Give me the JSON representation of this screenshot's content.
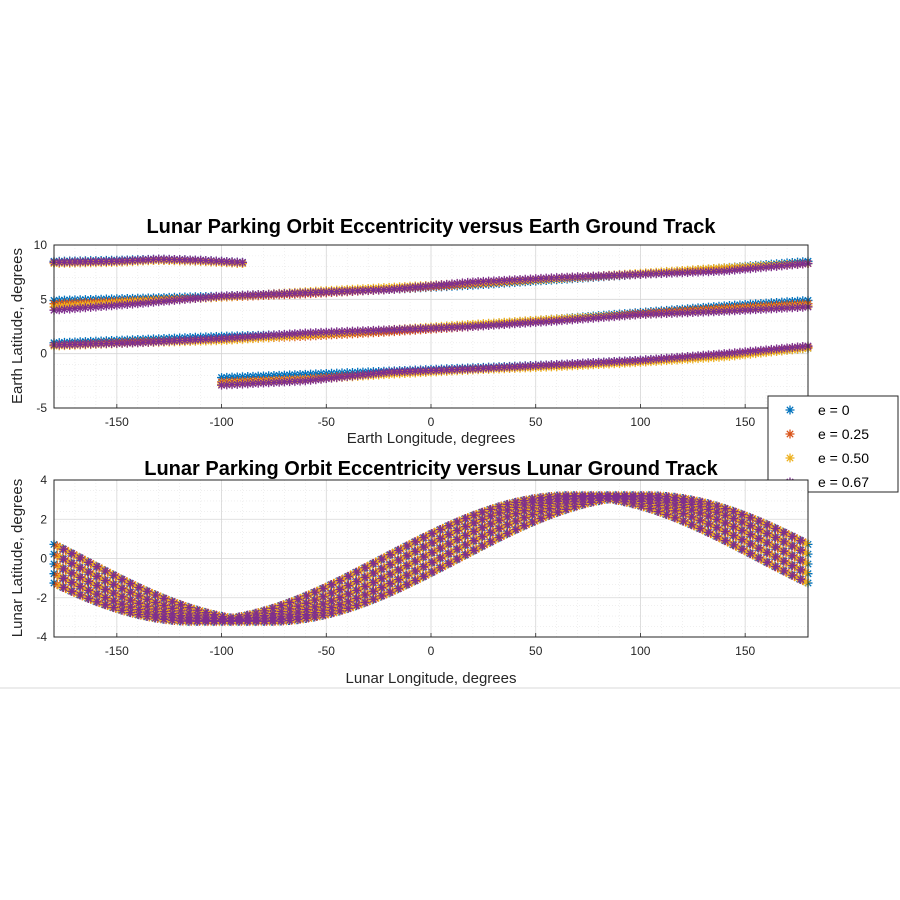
{
  "chart_data": [
    {
      "type": "scatter",
      "title": "Lunar Parking Orbit Eccentricity versus Earth Ground Track",
      "xlabel": "Earth Longitude, degrees",
      "ylabel": "Earth Latitude, degrees",
      "xlim": [
        -180,
        180
      ],
      "ylim": [
        -5,
        10
      ],
      "xticks": [
        -150,
        -100,
        -50,
        0,
        50,
        100,
        150
      ],
      "yticks": [
        -5,
        0,
        5,
        10
      ],
      "grid": true,
      "minor_grid": true,
      "marker": "*",
      "legend": {
        "placement": "outside-right",
        "entries": [
          "e = 0",
          "e = 0.25",
          "e = 0.50",
          "e = 0.67"
        ]
      },
      "series": [
        {
          "name": "e = 0",
          "color": "#0072BD",
          "segments": [
            {
              "x": [
                -180,
                -140,
                -100,
                -60,
                -20,
                20,
                60,
                100,
                140,
                180
              ],
              "y": [
                4.9,
                5.1,
                5.3,
                5.6,
                5.9,
                6.3,
                6.8,
                7.3,
                7.9,
                8.5
              ]
            },
            {
              "x": [
                -180,
                -140,
                -100,
                -60,
                -20,
                20,
                60,
                100,
                140,
                180
              ],
              "y": [
                1.0,
                1.3,
                1.6,
                1.8,
                2.1,
                2.6,
                3.2,
                3.8,
                4.4,
                4.9
              ]
            },
            {
              "x": [
                -100,
                -60,
                -20,
                20,
                60,
                100,
                140,
                180
              ],
              "y": [
                -2.2,
                -1.9,
                -1.6,
                -1.3,
                -1.0,
                -0.6,
                -0.1,
                0.5
              ]
            },
            {
              "x": [
                -180,
                -150,
                -130,
                -110,
                -90
              ],
              "y": [
                8.5,
                8.6,
                8.7,
                8.6,
                8.4
              ]
            }
          ]
        },
        {
          "name": "e = 0.25",
          "color": "#D95319",
          "segments": [
            {
              "x": [
                -180,
                -140,
                -100,
                -60,
                -20,
                20,
                60,
                100,
                140,
                180
              ],
              "y": [
                4.6,
                4.9,
                5.2,
                5.5,
                5.9,
                6.4,
                6.9,
                7.3,
                7.8,
                8.3
              ]
            },
            {
              "x": [
                -180,
                -140,
                -100,
                -60,
                -20,
                20,
                60,
                100,
                140,
                180
              ],
              "y": [
                0.8,
                1.1,
                1.3,
                1.6,
                2.0,
                2.5,
                3.1,
                3.7,
                4.2,
                4.6
              ]
            },
            {
              "x": [
                -100,
                -60,
                -20,
                20,
                60,
                100,
                140,
                180
              ],
              "y": [
                -2.6,
                -2.3,
                -1.8,
                -1.4,
                -1.1,
                -0.7,
                -0.1,
                0.6
              ]
            },
            {
              "x": [
                -180,
                -150,
                -130,
                -110,
                -90
              ],
              "y": [
                8.4,
                8.5,
                8.6,
                8.5,
                8.3
              ]
            }
          ]
        },
        {
          "name": "e = 0.50",
          "color": "#EDB120",
          "segments": [
            {
              "x": [
                -180,
                -140,
                -100,
                -60,
                -20,
                20,
                60,
                100,
                140,
                180
              ],
              "y": [
                4.3,
                4.8,
                5.2,
                5.7,
                6.1,
                6.5,
                6.9,
                7.4,
                7.9,
                8.3
              ]
            },
            {
              "x": [
                -180,
                -140,
                -100,
                -60,
                -20,
                20,
                60,
                100,
                140,
                180
              ],
              "y": [
                0.7,
                1.0,
                1.2,
                1.7,
                2.2,
                2.7,
                3.2,
                3.6,
                4.0,
                4.4
              ]
            },
            {
              "x": [
                -100,
                -60,
                -20,
                20,
                60,
                100,
                140,
                180
              ],
              "y": [
                -2.8,
                -2.4,
                -1.9,
                -1.5,
                -1.2,
                -0.8,
                -0.3,
                0.5
              ]
            },
            {
              "x": [
                -180,
                -150,
                -130,
                -110,
                -90
              ],
              "y": [
                8.3,
                8.4,
                8.6,
                8.5,
                8.3
              ]
            }
          ]
        },
        {
          "name": "e = 0.67",
          "color": "#7E2F8E",
          "segments": [
            {
              "x": [
                -180,
                -140,
                -100,
                -60,
                -20,
                20,
                60,
                100,
                140,
                180
              ],
              "y": [
                4.0,
                4.6,
                5.3,
                5.6,
                5.9,
                6.6,
                7.0,
                7.3,
                7.6,
                8.3
              ]
            },
            {
              "x": [
                -180,
                -140,
                -100,
                -60,
                -20,
                20,
                60,
                100,
                140,
                180
              ],
              "y": [
                0.8,
                1.0,
                1.4,
                1.9,
                2.2,
                2.5,
                3.0,
                3.6,
                3.9,
                4.3
              ]
            },
            {
              "x": [
                -100,
                -60,
                -20,
                20,
                60,
                100,
                140,
                180
              ],
              "y": [
                -2.9,
                -2.5,
                -1.7,
                -1.4,
                -1.0,
                -0.6,
                0.0,
                0.7
              ]
            },
            {
              "x": [
                -180,
                -150,
                -130,
                -110,
                -90
              ],
              "y": [
                8.4,
                8.5,
                8.7,
                8.6,
                8.4
              ]
            }
          ]
        }
      ]
    },
    {
      "type": "scatter",
      "title": "Lunar Parking Orbit Eccentricity versus Lunar Ground Track",
      "xlabel": "Lunar Longitude, degrees",
      "ylabel": "Lunar Latitude, degrees",
      "xlim": [
        -180,
        180
      ],
      "ylim": [
        -4,
        4
      ],
      "xticks": [
        -150,
        -100,
        -50,
        0,
        50,
        100,
        150
      ],
      "yticks": [
        -4,
        -2,
        0,
        2,
        4
      ],
      "grid": true,
      "minor_grid": true,
      "marker": "*",
      "band": {
        "amplitude": 3.2,
        "phase_deg": 90,
        "longitude_offsets": [
          -18,
          -9,
          0,
          9,
          18
        ]
      },
      "series": [
        {
          "name": "e = 0",
          "color": "#0072BD"
        },
        {
          "name": "e = 0.25",
          "color": "#D95319"
        },
        {
          "name": "e = 0.50",
          "color": "#EDB120"
        },
        {
          "name": "e = 0.67",
          "color": "#7E2F8E"
        }
      ]
    }
  ]
}
